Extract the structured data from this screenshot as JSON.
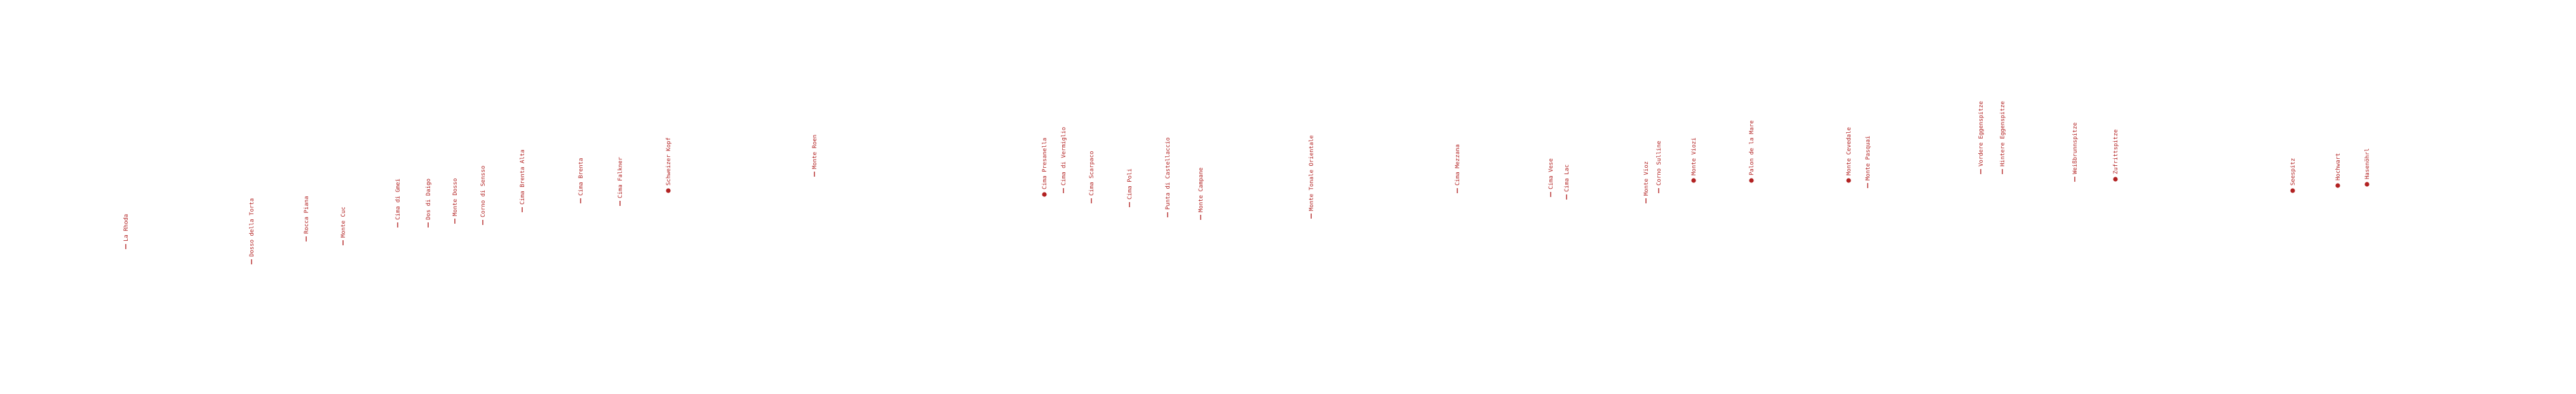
{
  "panorama": {
    "color": "#b22222",
    "peaks": [
      {
        "label": "La Rhoda",
        "marker": "tick"
      },
      {
        "label": "Dosso della Torta",
        "marker": "tick"
      },
      {
        "label": "Rocca Piana",
        "marker": "tick"
      },
      {
        "label": "Monte Cuc",
        "marker": "tick"
      },
      {
        "label": "Cima di Gmei",
        "marker": "tick"
      },
      {
        "label": "Dos di Daigo",
        "marker": "tick"
      },
      {
        "label": "Monte Dosso",
        "marker": "tick"
      },
      {
        "label": "Corno di Sensso",
        "marker": "tick"
      },
      {
        "label": "Cima Brenta Alta",
        "marker": "tick"
      },
      {
        "label": "Cima Brenta",
        "marker": "tick"
      },
      {
        "label": "Cima Falkner",
        "marker": "tick"
      },
      {
        "label": "Schweizer Kopf",
        "marker": "dot"
      },
      {
        "label": "Monte Roen",
        "marker": "tick"
      },
      {
        "label": "Cima Presanella",
        "marker": "dot"
      },
      {
        "label": "Cima di Vermiglio",
        "marker": "tick"
      },
      {
        "label": "Cima Scarpaco",
        "marker": "tick"
      },
      {
        "label": "Cima Poli",
        "marker": "tick"
      },
      {
        "label": "Punta di Castellaccio",
        "marker": "tick"
      },
      {
        "label": "Monte Campane",
        "marker": "tick"
      },
      {
        "label": "Monte Tonale Orientale",
        "marker": "tick"
      },
      {
        "label": "Cima Mezzana",
        "marker": "tick"
      },
      {
        "label": "Cima Vese",
        "marker": "tick"
      },
      {
        "label": "Cima Lac",
        "marker": "tick"
      },
      {
        "label": "Monte Vioz",
        "marker": "tick"
      },
      {
        "label": "Corno Sulline",
        "marker": "tick"
      },
      {
        "label": "Monte Viozi",
        "marker": "dot"
      },
      {
        "label": "Palon de la Mare",
        "marker": "dot"
      },
      {
        "label": "Monte Cevedale",
        "marker": "dot"
      },
      {
        "label": "Monte Pasquai",
        "marker": "tick"
      },
      {
        "label": "Vordere Eggenspitze",
        "marker": "tick"
      },
      {
        "label": "Hintere Eggenspitze",
        "marker": "tick"
      },
      {
        "label": "Weißbrunnspitze",
        "marker": "tick"
      },
      {
        "label": "Zufrittspitze",
        "marker": "dot"
      },
      {
        "label": "Seespitz",
        "marker": "dot"
      },
      {
        "label": "Hochwart",
        "marker": "dot"
      },
      {
        "label": "Hasenöhrl",
        "marker": "dot"
      }
    ]
  }
}
